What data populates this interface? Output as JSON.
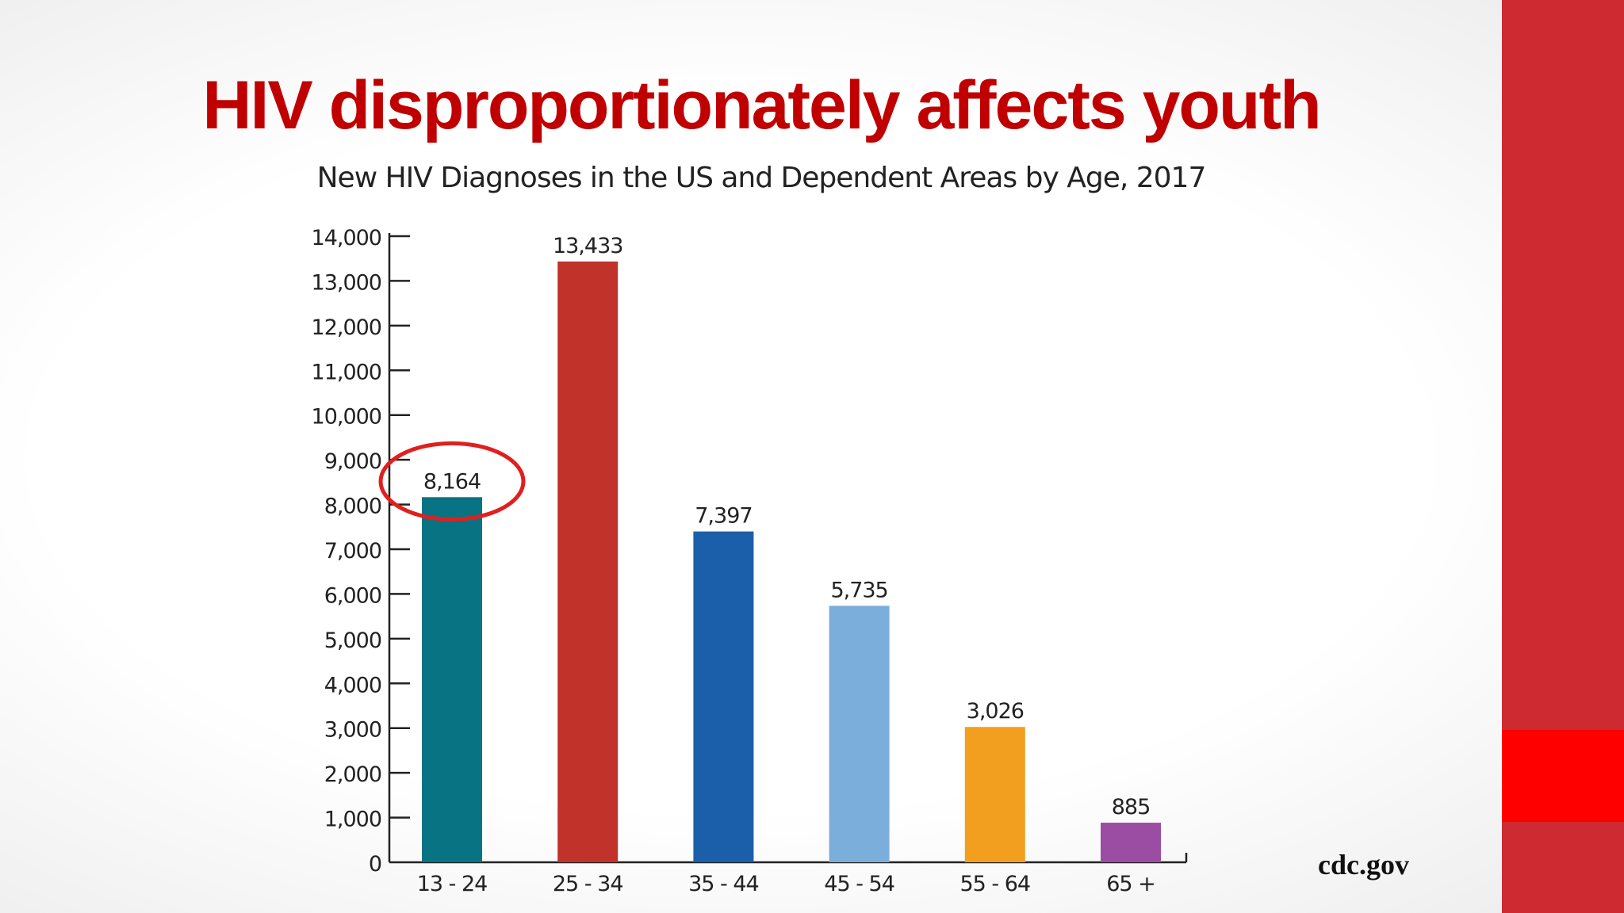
{
  "slide": {
    "title": "HIV disproportionately affects youth",
    "source": "cdc.gov",
    "band_color": "#cd2a31",
    "band_accent_color": "#fe0000"
  },
  "chart_data": {
    "type": "bar",
    "title": "New HIV Diagnoses in the US and Dependent Areas by Age, 2017",
    "xlabel": "",
    "ylabel": "",
    "categories": [
      "13 - 24",
      "25 - 34",
      "35 - 44",
      "45 - 54",
      "55 - 64",
      "65 +"
    ],
    "values": [
      8164,
      13433,
      7397,
      5735,
      3026,
      885
    ],
    "value_labels": [
      "8,164",
      "13,433",
      "7,397",
      "5,735",
      "3,026",
      "885"
    ],
    "colors": [
      "#087383",
      "#c0322a",
      "#1b5eaa",
      "#7caedb",
      "#f29f1f",
      "#9a4da2"
    ],
    "ylim": [
      0,
      14000
    ],
    "yticks": [
      0,
      1000,
      2000,
      3000,
      4000,
      5000,
      6000,
      7000,
      8000,
      9000,
      10000,
      11000,
      12000,
      13000,
      14000
    ],
    "ytick_labels": [
      "0",
      "1,000",
      "2,000",
      "3,000",
      "4,000",
      "5,000",
      "6,000",
      "7,000",
      "8,000",
      "9,000",
      "10,000",
      "11,000",
      "12,000",
      "13,000",
      "14,000"
    ],
    "grid": false,
    "legend": "none",
    "highlight": {
      "category": "13 - 24",
      "shape": "ellipse",
      "color": "#e0201e"
    }
  }
}
